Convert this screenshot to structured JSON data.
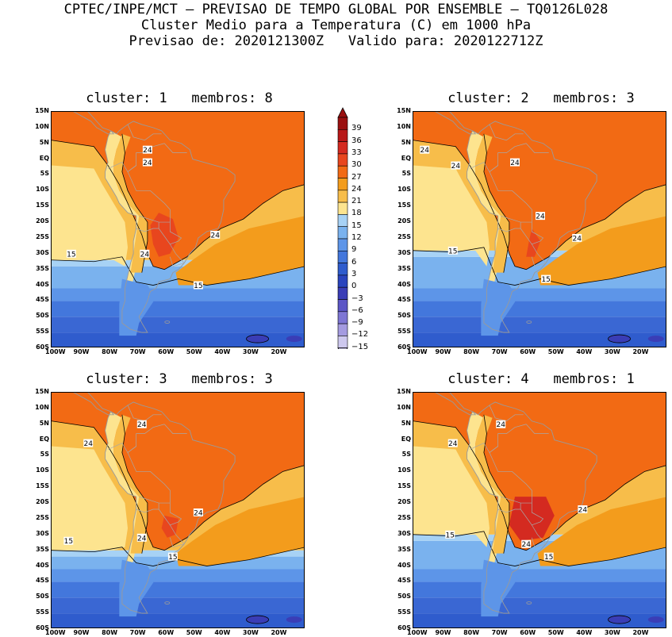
{
  "header": {
    "line1": "CPTEC/INPE/MCT – PREVISAO DE TEMPO GLOBAL POR ENSEMBLE – TQ0126L028",
    "line2": "Cluster Medio para a Temperatura (C) em 1000 hPa",
    "line3": "Previsao de: 2020121300Z   Valido para: 2020122712Z"
  },
  "axes": {
    "lat_ticks": [
      "15N",
      "10N",
      "5N",
      "EQ",
      "5S",
      "10S",
      "15S",
      "20S",
      "25S",
      "30S",
      "35S",
      "40S",
      "45S",
      "50S",
      "55S",
      "60S"
    ],
    "lon_ticks": [
      "100W",
      "90W",
      "80W",
      "70W",
      "60W",
      "50W",
      "40W",
      "30W",
      "20W"
    ]
  },
  "panels": [
    {
      "title": "cluster: 1   membros: 8",
      "labels": [
        "24",
        "24",
        "24",
        "24",
        "15",
        "15"
      ]
    },
    {
      "title": "cluster: 2   membros: 3",
      "labels": [
        "24",
        "24",
        "24",
        "24",
        "24",
        "15",
        "15"
      ]
    },
    {
      "title": "cluster: 3   membros: 3",
      "labels": [
        "24",
        "24",
        "24",
        "24",
        "15",
        "15"
      ]
    },
    {
      "title": "cluster: 4   membros: 1",
      "labels": [
        "24",
        "24",
        "24",
        "24",
        "15",
        "15"
      ]
    }
  ],
  "colorbar": {
    "levels": [
      "39",
      "36",
      "33",
      "30",
      "27",
      "24",
      "21",
      "18",
      "15",
      "12",
      "9",
      "6",
      "3",
      "0",
      "−3",
      "−6",
      "−9",
      "−12",
      "−15"
    ],
    "colors": [
      "#9a1010",
      "#b81818",
      "#d42a20",
      "#e8461e",
      "#f26a14",
      "#f39c1c",
      "#f7bd4a",
      "#fde48f",
      "#a7d2f5",
      "#7ab2ee",
      "#5d95e8",
      "#4377dc",
      "#2f5ccd",
      "#2a44be",
      "#3a3db6",
      "#5c56c6",
      "#7e76d4",
      "#a49be0",
      "#cdc8ee"
    ]
  }
}
